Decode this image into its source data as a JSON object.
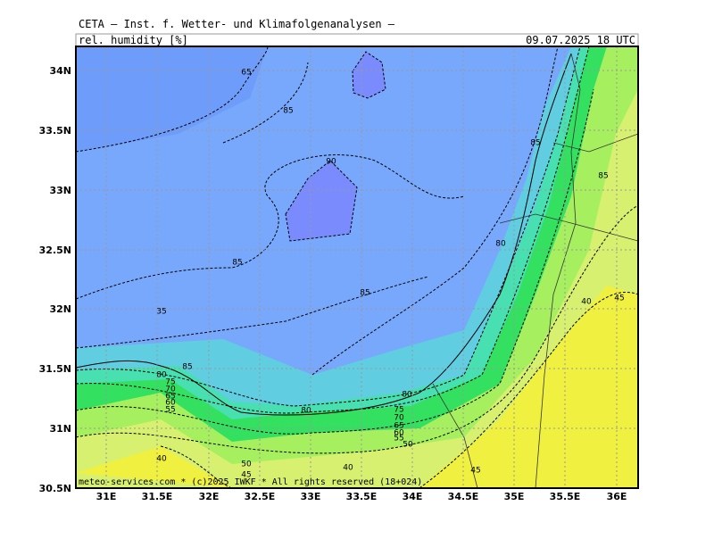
{
  "header": {
    "title": "CETA – Inst. f. Wetter- und Klimafolgenanalysen –",
    "field": "rel. humidity [%]",
    "valid_time": "09.07.2025 18 UTC"
  },
  "footer": {
    "copyright": "meteo-services.com * (c)2025 IWKF * All rights reserved (18+024)"
  },
  "axes": {
    "lat_labels": [
      "34N",
      "33.5N",
      "33N",
      "32.5N",
      "32N",
      "31.5N",
      "31N",
      "30.5N"
    ],
    "lon_labels": [
      "31E",
      "31.5E",
      "32E",
      "32.5E",
      "33E",
      "33.5E",
      "34E",
      "34.5E",
      "35E",
      "35.5E",
      "36E"
    ]
  },
  "contour_labels": [
    65,
    85,
    90,
    85,
    85,
    80,
    85,
    85,
    35,
    40,
    45,
    85,
    80,
    75,
    70,
    65,
    60,
    55,
    80,
    80,
    75,
    70,
    65,
    60,
    55,
    50,
    40,
    50,
    45,
    40,
    45
  ]
}
